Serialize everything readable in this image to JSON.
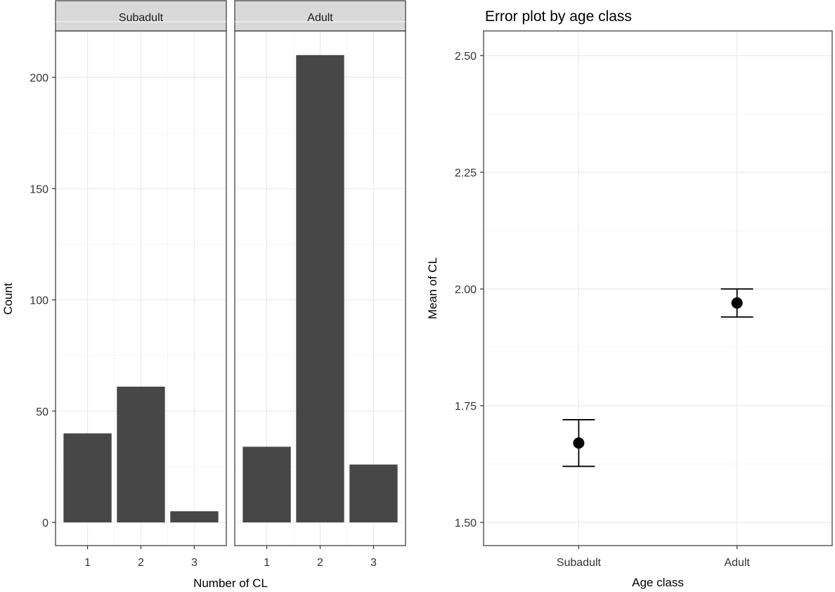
{
  "colors": {
    "bar_fill": "#474747",
    "panel_border": "#333333",
    "strip_fill": "#d9d9d9",
    "grid_major": "#ebebeb",
    "grid_minor": "#f5f5f5",
    "point": "#000000"
  },
  "chart_data": [
    {
      "type": "bar",
      "title": "",
      "xlabel": "Number of CL",
      "ylabel": "Count",
      "ylim": [
        0,
        220
      ],
      "yticks": [
        "0",
        "50",
        "100",
        "150",
        "200"
      ],
      "ytick_values": [
        0,
        50,
        100,
        150,
        200
      ],
      "categories": [
        "1",
        "2",
        "3"
      ],
      "grid": true,
      "facets": [
        {
          "name": "Subadult",
          "values": [
            40,
            61,
            5
          ]
        },
        {
          "name": "Adult",
          "values": [
            34,
            210,
            26
          ]
        }
      ]
    },
    {
      "type": "scatter",
      "title": "Error plot by age class",
      "xlabel": "Age class",
      "ylabel": "Mean of CL",
      "ylim": [
        1.47,
        2.53
      ],
      "yticks": [
        "1.50",
        "1.75",
        "2.00",
        "2.25",
        "2.50"
      ],
      "ytick_values": [
        1.5,
        1.75,
        2.0,
        2.25,
        2.5
      ],
      "categories": [
        "Subadult",
        "Adult"
      ],
      "grid": true,
      "points": [
        {
          "category": "Subadult",
          "mean": 1.67,
          "lower": 1.62,
          "upper": 1.72
        },
        {
          "category": "Adult",
          "mean": 1.97,
          "lower": 1.94,
          "upper": 2.0
        }
      ]
    }
  ]
}
